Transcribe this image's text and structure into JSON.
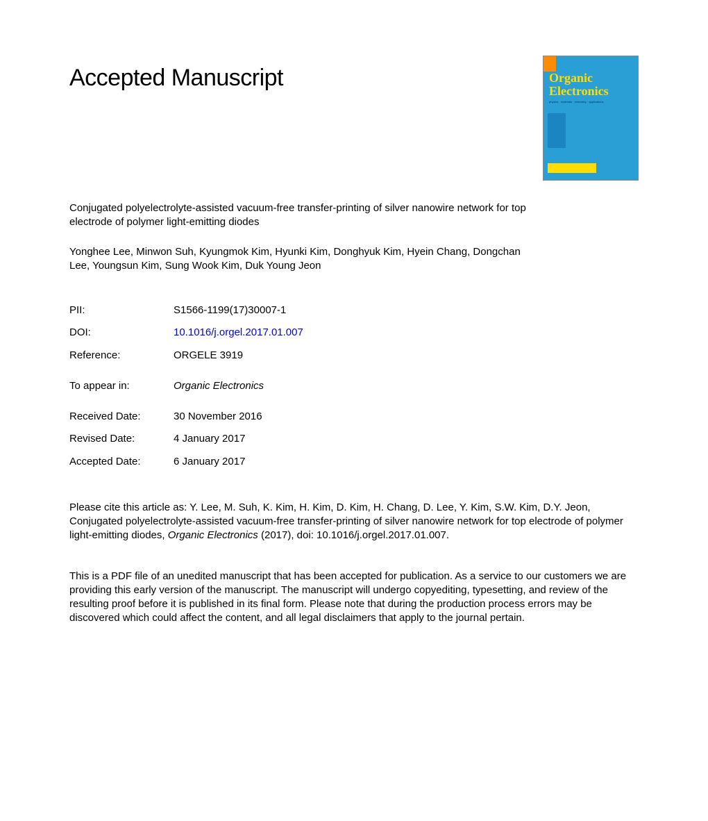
{
  "heading": "Accepted Manuscript",
  "journal_cover": {
    "title": "Organic Electronics",
    "subtitle": "physics · materials · chemistry · applications",
    "background_color": "#2a9fd6",
    "title_color": "#ffdd00",
    "accent_color": "#ff8c00"
  },
  "article": {
    "title": "Conjugated polyelectrolyte-assisted vacuum-free transfer-printing of silver nanowire network for top electrode of polymer light-emitting diodes",
    "authors": "Yonghee Lee, Minwon Suh, Kyungmok Kim, Hyunki Kim, Donghyuk Kim, Hyein Chang, Dongchan Lee, Youngsun Kim, Sung Wook Kim, Duk Young Jeon"
  },
  "meta": {
    "pii_label": "PII:",
    "pii_value": "S1566-1199(17)30007-1",
    "doi_label": "DOI:",
    "doi_value": "10.1016/j.orgel.2017.01.007",
    "reference_label": "Reference:",
    "reference_value": "ORGELE 3919",
    "to_appear_label": "To appear in:",
    "to_appear_value": "Organic Electronics",
    "received_label": "Received Date:",
    "received_value": "30 November 2016",
    "revised_label": "Revised Date:",
    "revised_value": "4 January 2017",
    "accepted_label": "Accepted Date:",
    "accepted_value": "6 January 2017"
  },
  "citation": {
    "prefix": "Please cite this article as: Y. Lee, M. Suh, K. Kim, H. Kim, D. Kim, H. Chang, D. Lee, Y. Kim, S.W. Kim, D.Y. Jeon, Conjugated polyelectrolyte-assisted vacuum-free transfer-printing of silver nanowire network for top electrode of polymer light-emitting diodes, ",
    "journal": "Organic Electronics",
    "suffix": " (2017), doi: 10.1016/j.orgel.2017.01.007."
  },
  "disclaimer": "This is a PDF file of an unedited manuscript that has been accepted for publication. As a service to our customers we are providing this early version of the manuscript. The manuscript will undergo copyediting, typesetting, and review of the resulting proof before it is published in its final form. Please note that during the production process errors may be discovered which could affect the content, and all legal disclaimers that apply to the journal pertain."
}
